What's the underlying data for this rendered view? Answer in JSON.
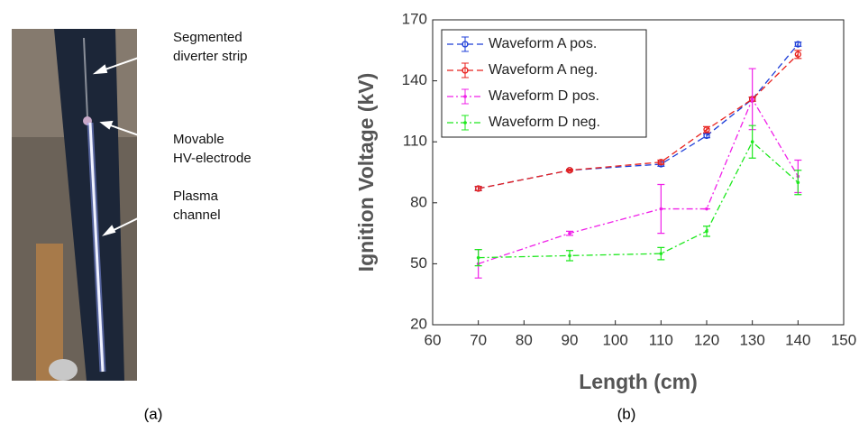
{
  "photo": {
    "annotations": [
      [
        "Segmented",
        "diverter strip"
      ],
      [
        "Movable",
        "HV-electrode"
      ],
      [
        "Plasma",
        "channel"
      ]
    ],
    "caption": "(a)"
  },
  "chart_data": {
    "type": "line",
    "caption": "(b)",
    "x_label": "Length (cm)",
    "y_label": "Ignition Voltage (kV)",
    "x": [
      70,
      90,
      110,
      120,
      130,
      140
    ],
    "xlim": [
      60,
      150
    ],
    "xticks": [
      60,
      70,
      80,
      90,
      100,
      110,
      120,
      130,
      140,
      150
    ],
    "ylim": [
      20,
      170
    ],
    "yticks": [
      20,
      50,
      80,
      110,
      140,
      170
    ],
    "grid": false,
    "legend": "upper left",
    "series": [
      {
        "name": "Waveform A pos.",
        "color": "#1f3fd8",
        "linestyle": "dashed",
        "marker": "circle",
        "values": [
          87,
          96,
          99,
          113,
          131,
          158
        ],
        "errors": [
          1,
          0.5,
          1,
          1,
          1,
          1
        ]
      },
      {
        "name": "Waveform A neg.",
        "color": "#e8201c",
        "linestyle": "dashed",
        "marker": "circle",
        "values": [
          87,
          96,
          100,
          116,
          131,
          153
        ],
        "errors": [
          1,
          0.5,
          1,
          1.5,
          1,
          2
        ]
      },
      {
        "name": "Waveform D pos.",
        "color": "#f020e8",
        "linestyle": "dashdot",
        "marker": "dot",
        "values": [
          50,
          65,
          77,
          77,
          131,
          93
        ],
        "errors": [
          7,
          1,
          12,
          0,
          15,
          8
        ]
      },
      {
        "name": "Waveform D neg.",
        "color": "#1ee81e",
        "linestyle": "dashdot",
        "marker": "dot",
        "values": [
          53,
          54,
          55,
          66,
          110,
          90
        ],
        "errors": [
          4,
          2.5,
          3,
          2.5,
          8,
          6
        ]
      }
    ]
  }
}
